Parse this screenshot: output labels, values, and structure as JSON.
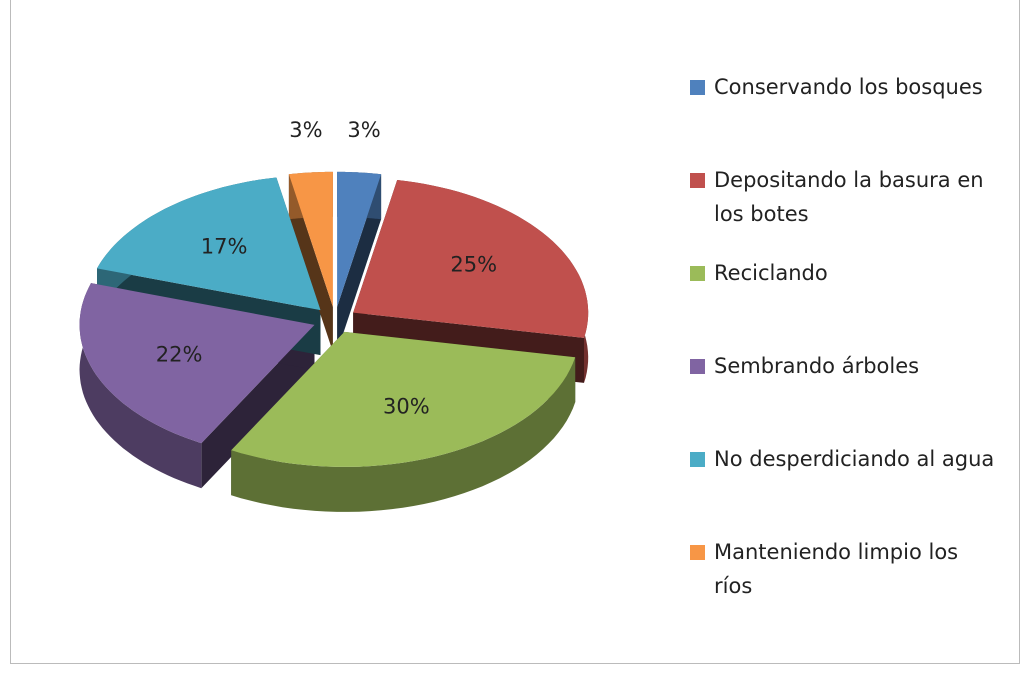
{
  "chart_data": {
    "type": "pie",
    "categories": [
      "Conservando los bosques",
      "Depositando la basura en los botes",
      "Reciclando",
      "Sembrando árboles",
      "No desperdiciando al agua",
      "Manteniendo limpio los ríos"
    ],
    "values": [
      3,
      25,
      30,
      22,
      17,
      3
    ],
    "value_labels": [
      "3%",
      "25%",
      "30%",
      "22%",
      "17%",
      "3%"
    ],
    "colors": [
      "#4f81bd",
      "#c0504d",
      "#9bbb59",
      "#8064a2",
      "#4bacc6",
      "#f79646"
    ],
    "legend": "right"
  }
}
